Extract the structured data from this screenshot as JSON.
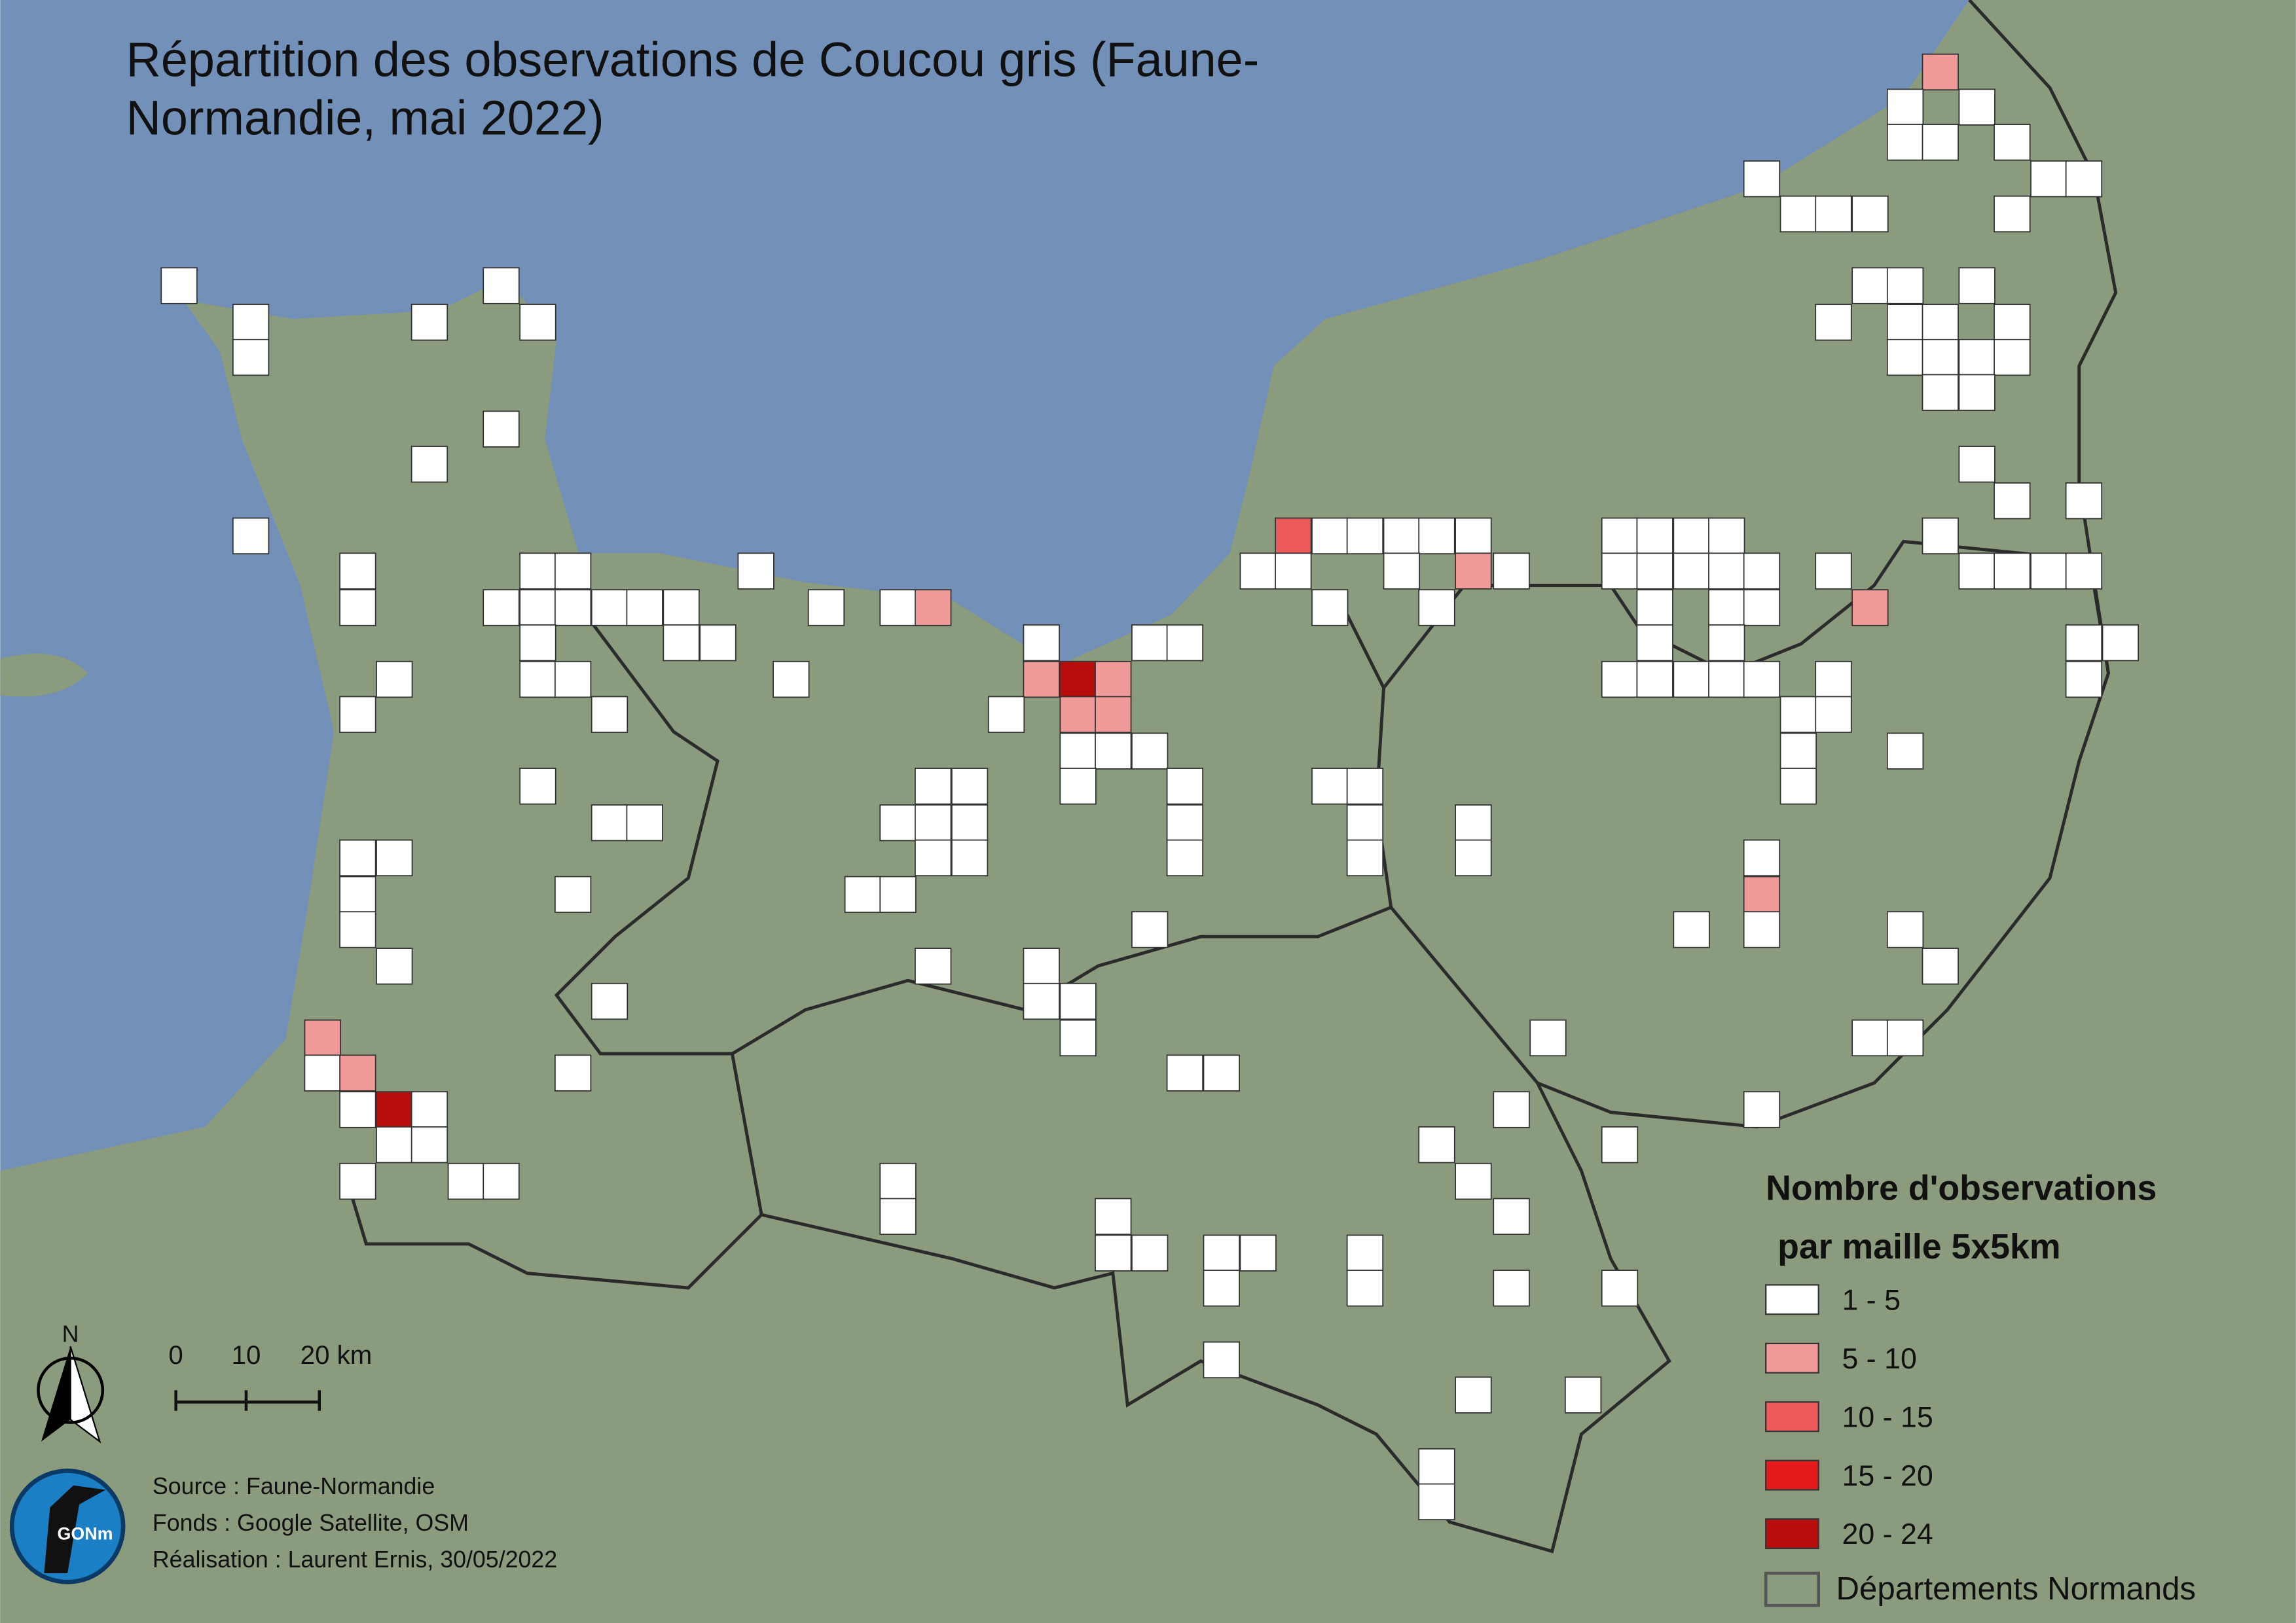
{
  "title_lines": [
    "Répartition des observations de Coucou gris (Faune-",
    "Normandie, mai 2022)"
  ],
  "legend": {
    "title_lines": [
      "Nombre d'observations",
      "par maille 5x5km"
    ],
    "classes": [
      {
        "label": "1 - 5",
        "color": "#ffffff"
      },
      {
        "label": "5 - 10",
        "color": "#f09a9a"
      },
      {
        "label": "10 - 15",
        "color": "#ec5a5a"
      },
      {
        "label": "15 - 20",
        "color": "#e31a1c"
      },
      {
        "label": "20 - 24",
        "color": "#b70d0d"
      }
    ],
    "boundary_label": "Départements Normands"
  },
  "scale": {
    "labels": [
      "0",
      "10",
      "20 km"
    ]
  },
  "north": "N",
  "logo": "GONm",
  "credits": [
    "Source : Faune-Normandie",
    "Fonds : Google Satellite, OSM",
    "Réalisation : Laurent Ernis, 30/05/2022"
  ]
}
